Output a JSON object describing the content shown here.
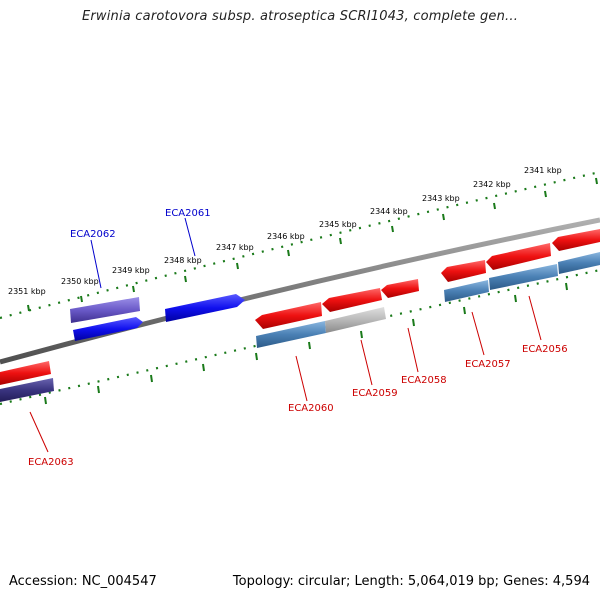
{
  "title": "Erwinia carotovora subsp. atroseptica SCRI1043, complete gen...",
  "footer": {
    "accession": "Accession: NC_004547",
    "topology": "Topology: circular; Length: 5,064,019 bp; Genes: 4,594"
  },
  "ruler_labels": [
    "2351 kbp",
    "2350 kbp",
    "2349 kbp",
    "2348 kbp",
    "2347 kbp",
    "2346 kbp",
    "2345 kbp",
    "2344 kbp",
    "2343 kbp",
    "2342 kbp",
    "2341 kbp"
  ],
  "genes": [
    {
      "name": "ECA2062",
      "color": "#0000cc"
    },
    {
      "name": "ECA2061",
      "color": "#0000cc"
    },
    {
      "name": "ECA2063",
      "color": "#cc0000"
    },
    {
      "name": "ECA2060",
      "color": "#cc0000"
    },
    {
      "name": "ECA2059",
      "color": "#cc0000"
    },
    {
      "name": "ECA2058",
      "color": "#cc0000"
    },
    {
      "name": "ECA2057",
      "color": "#cc0000"
    },
    {
      "name": "ECA2056",
      "color": "#cc0000"
    }
  ],
  "colors": {
    "tick": "#1a7a1a",
    "backbone": "#808080",
    "forward_red": "#ee1111",
    "forward_blue": "#1010ee",
    "steel_blue": "#4a80b4",
    "grey_feature": "#b8b8b8",
    "purple_feature": "#6a5ac8"
  }
}
